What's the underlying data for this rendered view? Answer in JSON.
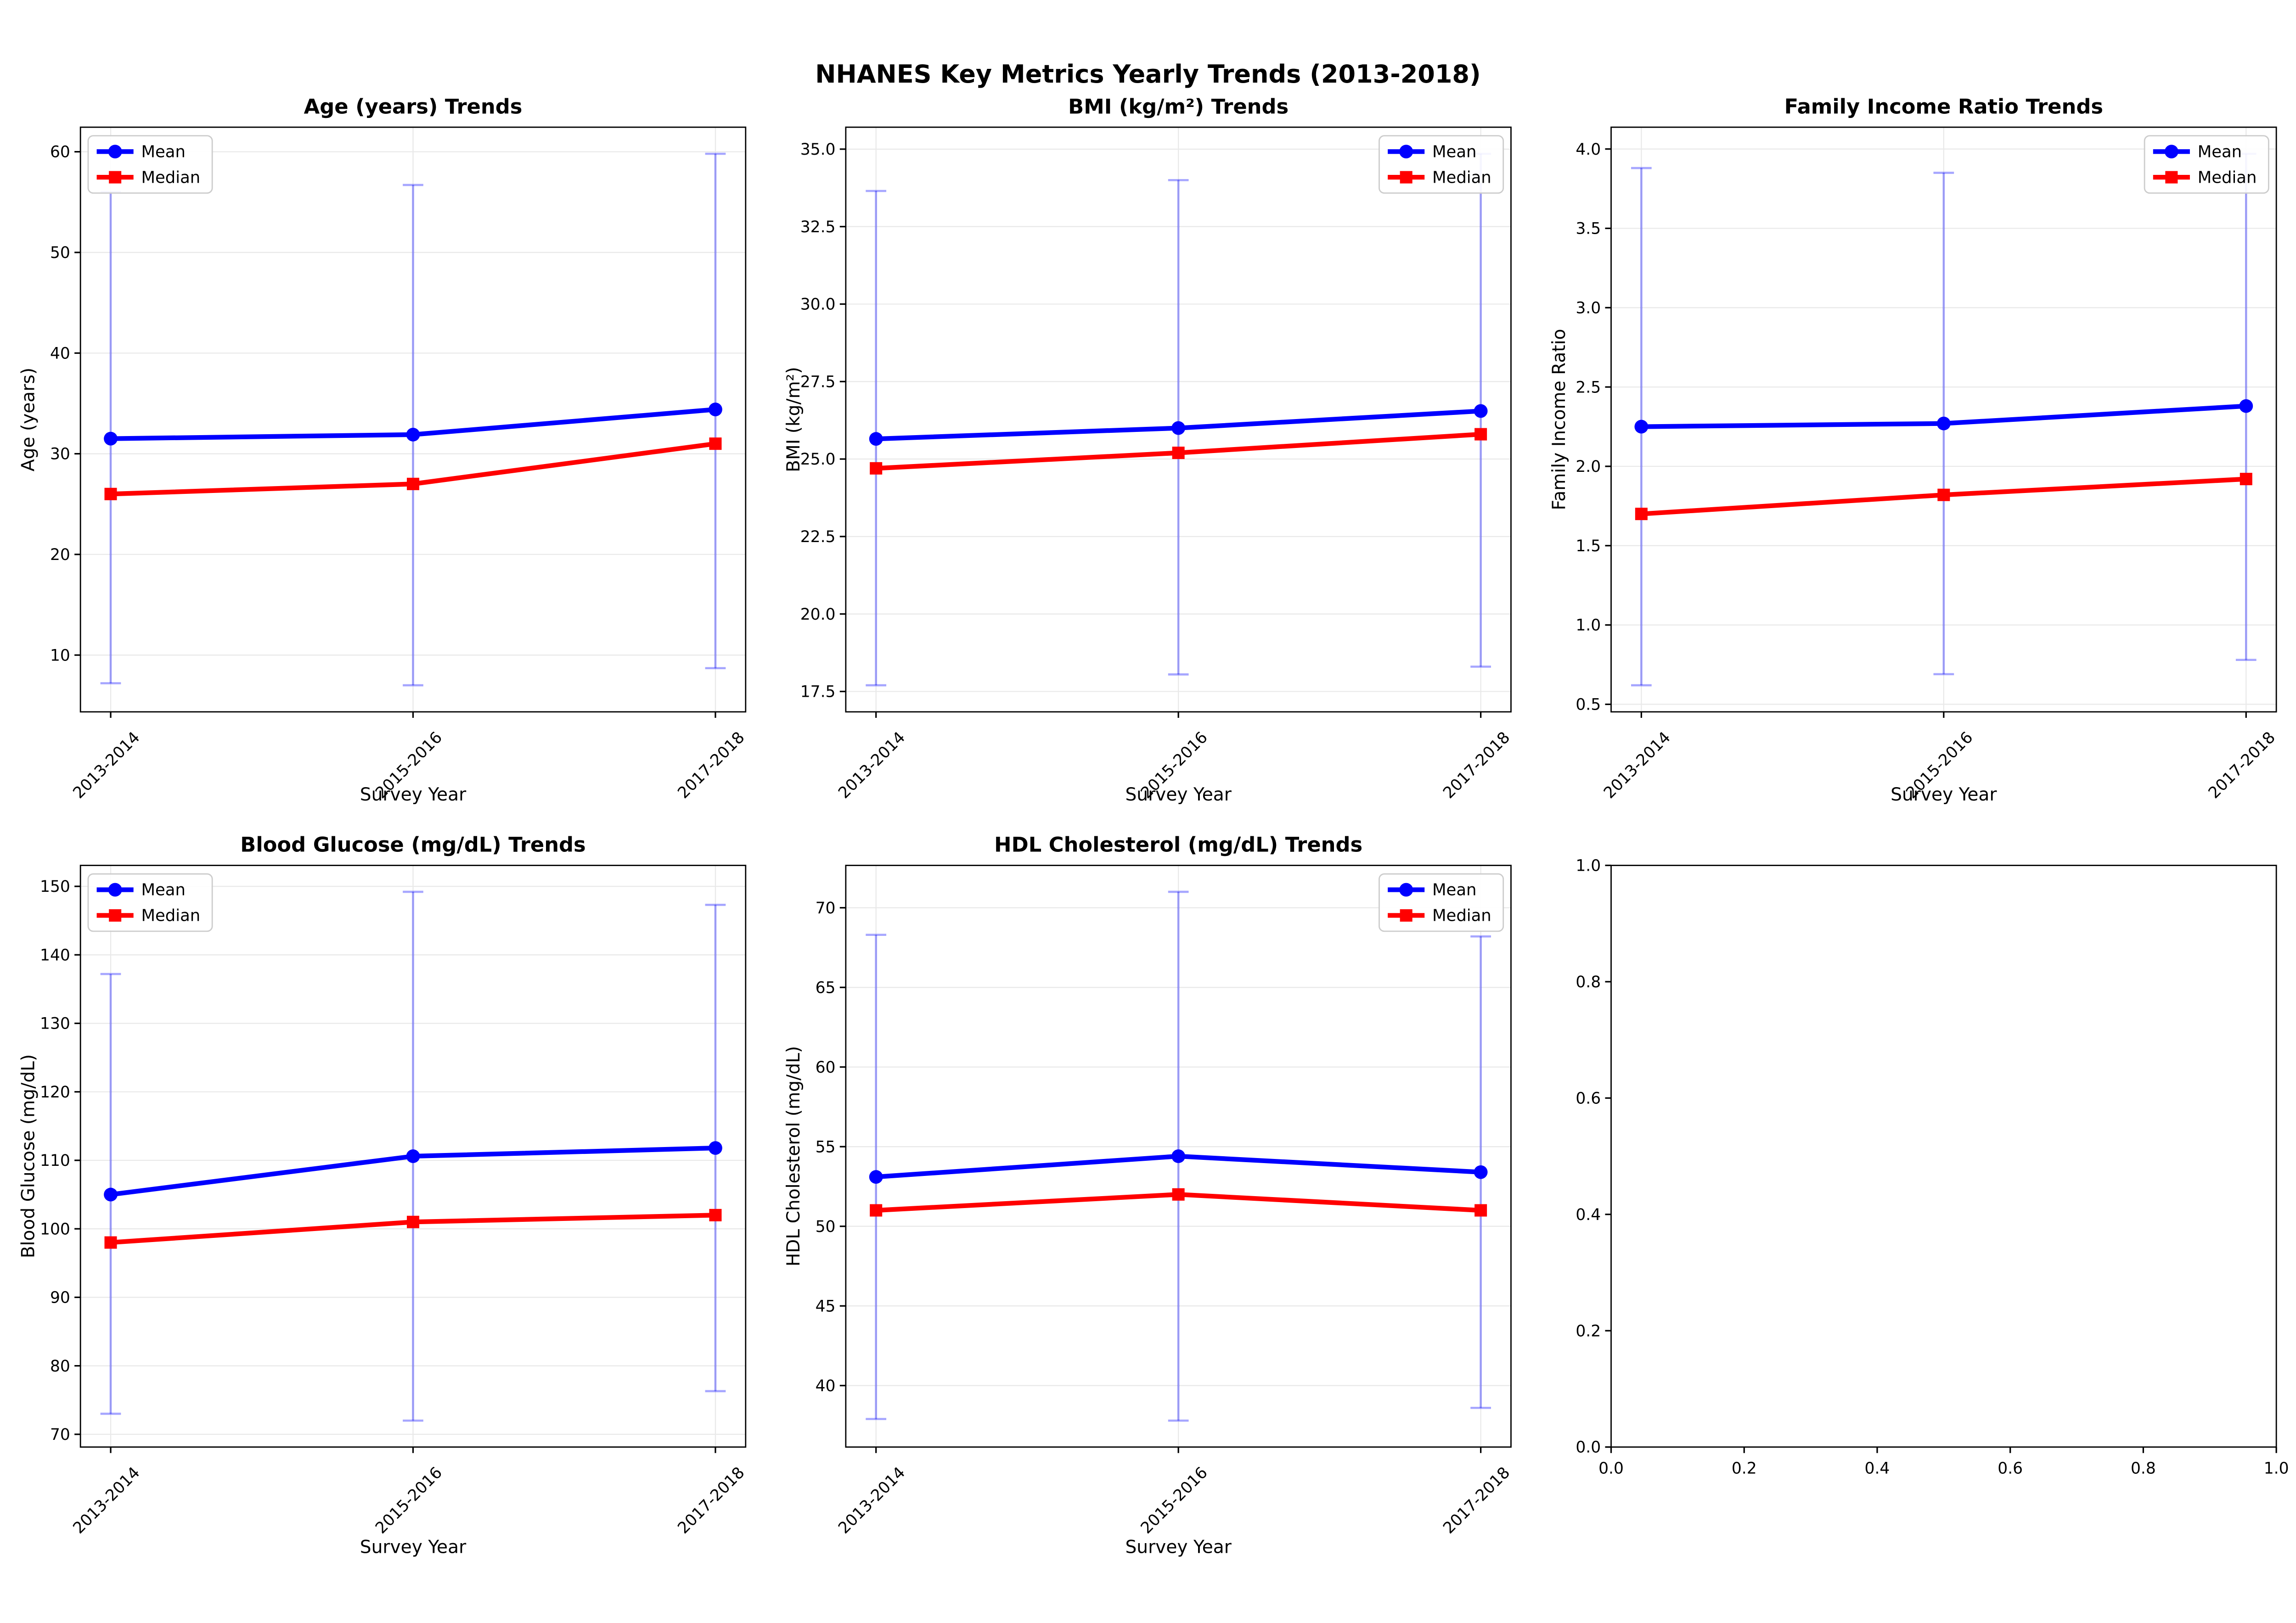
{
  "figure": {
    "title": "NHANES Key Metrics Yearly Trends (2013-2018)",
    "background": "#ffffff",
    "colors": {
      "mean": "#0000ff",
      "median": "#ff0000",
      "errorbar": "rgba(0,0,255,0.35)",
      "grid": "#e9e9e9",
      "frame": "#000000",
      "legend_border": "#cccccc",
      "legend_fill": "#ffffff"
    }
  },
  "chart_data": [
    {
      "id": "age",
      "type": "line",
      "title": "Age (years) Trends",
      "xlabel": "Survey Year",
      "ylabel": "Age (years)",
      "categories": [
        "2013-2014",
        "2015-2016",
        "2017-2018"
      ],
      "ytick_labels": [
        "10",
        "20",
        "30",
        "40",
        "50",
        "60"
      ],
      "ytick_values": [
        10,
        20,
        30,
        40,
        50,
        60
      ],
      "grid": true,
      "legend": {
        "position": "upper-left",
        "entries": [
          "Mean",
          "Median"
        ]
      },
      "series": [
        {
          "name": "Mean",
          "color": "#0000ff",
          "marker": "circle",
          "values": [
            31.5,
            31.9,
            34.4
          ],
          "error_low": [
            7.2,
            7.0,
            8.7
          ],
          "error_high": [
            56.0,
            56.7,
            59.8
          ]
        },
        {
          "name": "Median",
          "color": "#ff0000",
          "marker": "square",
          "values": [
            26.0,
            27.0,
            31.0
          ]
        }
      ]
    },
    {
      "id": "bmi",
      "type": "line",
      "title": "BMI (kg/m²) Trends",
      "xlabel": "Survey Year",
      "ylabel": "BMI (kg/m²)",
      "categories": [
        "2013-2014",
        "2015-2016",
        "2017-2018"
      ],
      "ytick_labels": [
        "17.5",
        "20.0",
        "22.5",
        "25.0",
        "27.5",
        "30.0",
        "32.5",
        "35.0"
      ],
      "ytick_values": [
        17.5,
        20.0,
        22.5,
        25.0,
        27.5,
        30.0,
        32.5,
        35.0
      ],
      "grid": true,
      "legend": {
        "position": "upper-right",
        "entries": [
          "Mean",
          "Median"
        ]
      },
      "series": [
        {
          "name": "Mean",
          "color": "#0000ff",
          "marker": "circle",
          "values": [
            25.65,
            26.0,
            26.55
          ],
          "error_low": [
            17.7,
            18.05,
            18.3
          ],
          "error_high": [
            33.65,
            34.0,
            34.85
          ]
        },
        {
          "name": "Median",
          "color": "#ff0000",
          "marker": "square",
          "values": [
            24.7,
            25.2,
            25.8
          ]
        }
      ]
    },
    {
      "id": "income",
      "type": "line",
      "title": "Family Income Ratio Trends",
      "xlabel": "Survey Year",
      "ylabel": "Family Income Ratio",
      "categories": [
        "2013-2014",
        "2015-2016",
        "2017-2018"
      ],
      "ytick_labels": [
        "0.5",
        "1.0",
        "1.5",
        "2.0",
        "2.5",
        "3.0",
        "3.5",
        "4.0"
      ],
      "ytick_values": [
        0.5,
        1.0,
        1.5,
        2.0,
        2.5,
        3.0,
        3.5,
        4.0
      ],
      "grid": true,
      "legend": {
        "position": "upper-right",
        "entries": [
          "Mean",
          "Median"
        ]
      },
      "series": [
        {
          "name": "Mean",
          "color": "#0000ff",
          "marker": "circle",
          "values": [
            2.25,
            2.27,
            2.38
          ],
          "error_low": [
            0.62,
            0.69,
            0.78
          ],
          "error_high": [
            3.88,
            3.85,
            3.97
          ]
        },
        {
          "name": "Median",
          "color": "#ff0000",
          "marker": "square",
          "values": [
            1.7,
            1.82,
            1.92
          ]
        }
      ]
    },
    {
      "id": "glucose",
      "type": "line",
      "title": "Blood Glucose (mg/dL) Trends",
      "xlabel": "Survey Year",
      "ylabel": "Blood Glucose (mg/dL)",
      "categories": [
        "2013-2014",
        "2015-2016",
        "2017-2018"
      ],
      "ytick_labels": [
        "70",
        "80",
        "90",
        "100",
        "110",
        "120",
        "130",
        "140",
        "150"
      ],
      "ytick_values": [
        70,
        80,
        90,
        100,
        110,
        120,
        130,
        140,
        150
      ],
      "grid": true,
      "legend": {
        "position": "upper-left",
        "entries": [
          "Mean",
          "Median"
        ]
      },
      "series": [
        {
          "name": "Mean",
          "color": "#0000ff",
          "marker": "circle",
          "values": [
            105.0,
            110.6,
            111.8
          ],
          "error_low": [
            73.0,
            72.0,
            76.3
          ],
          "error_high": [
            137.2,
            149.2,
            147.3
          ]
        },
        {
          "name": "Median",
          "color": "#ff0000",
          "marker": "square",
          "values": [
            98.0,
            101.0,
            102.0
          ]
        }
      ]
    },
    {
      "id": "hdl",
      "type": "line",
      "title": "HDL Cholesterol (mg/dL) Trends",
      "xlabel": "Survey Year",
      "ylabel": "HDL Cholesterol (mg/dL)",
      "categories": [
        "2013-2014",
        "2015-2016",
        "2017-2018"
      ],
      "ytick_labels": [
        "40",
        "45",
        "50",
        "55",
        "60",
        "65",
        "70"
      ],
      "ytick_values": [
        40,
        45,
        50,
        55,
        60,
        65,
        70
      ],
      "grid": true,
      "legend": {
        "position": "upper-right",
        "entries": [
          "Mean",
          "Median"
        ]
      },
      "series": [
        {
          "name": "Mean",
          "color": "#0000ff",
          "marker": "circle",
          "values": [
            53.1,
            54.4,
            53.4
          ],
          "error_low": [
            37.9,
            37.8,
            38.6
          ],
          "error_high": [
            68.3,
            71.0,
            68.2
          ]
        },
        {
          "name": "Median",
          "color": "#ff0000",
          "marker": "square",
          "values": [
            51.0,
            52.0,
            51.0
          ]
        }
      ]
    },
    {
      "id": "empty",
      "type": "empty",
      "xtick_labels": [
        "0.0",
        "0.2",
        "0.4",
        "0.6",
        "0.8",
        "1.0"
      ],
      "xtick_values": [
        0,
        0.2,
        0.4,
        0.6,
        0.8,
        1.0
      ],
      "ytick_labels": [
        "0.0",
        "0.2",
        "0.4",
        "0.6",
        "0.8",
        "1.0"
      ],
      "ytick_values": [
        0,
        0.2,
        0.4,
        0.6,
        0.8,
        1.0
      ]
    }
  ]
}
